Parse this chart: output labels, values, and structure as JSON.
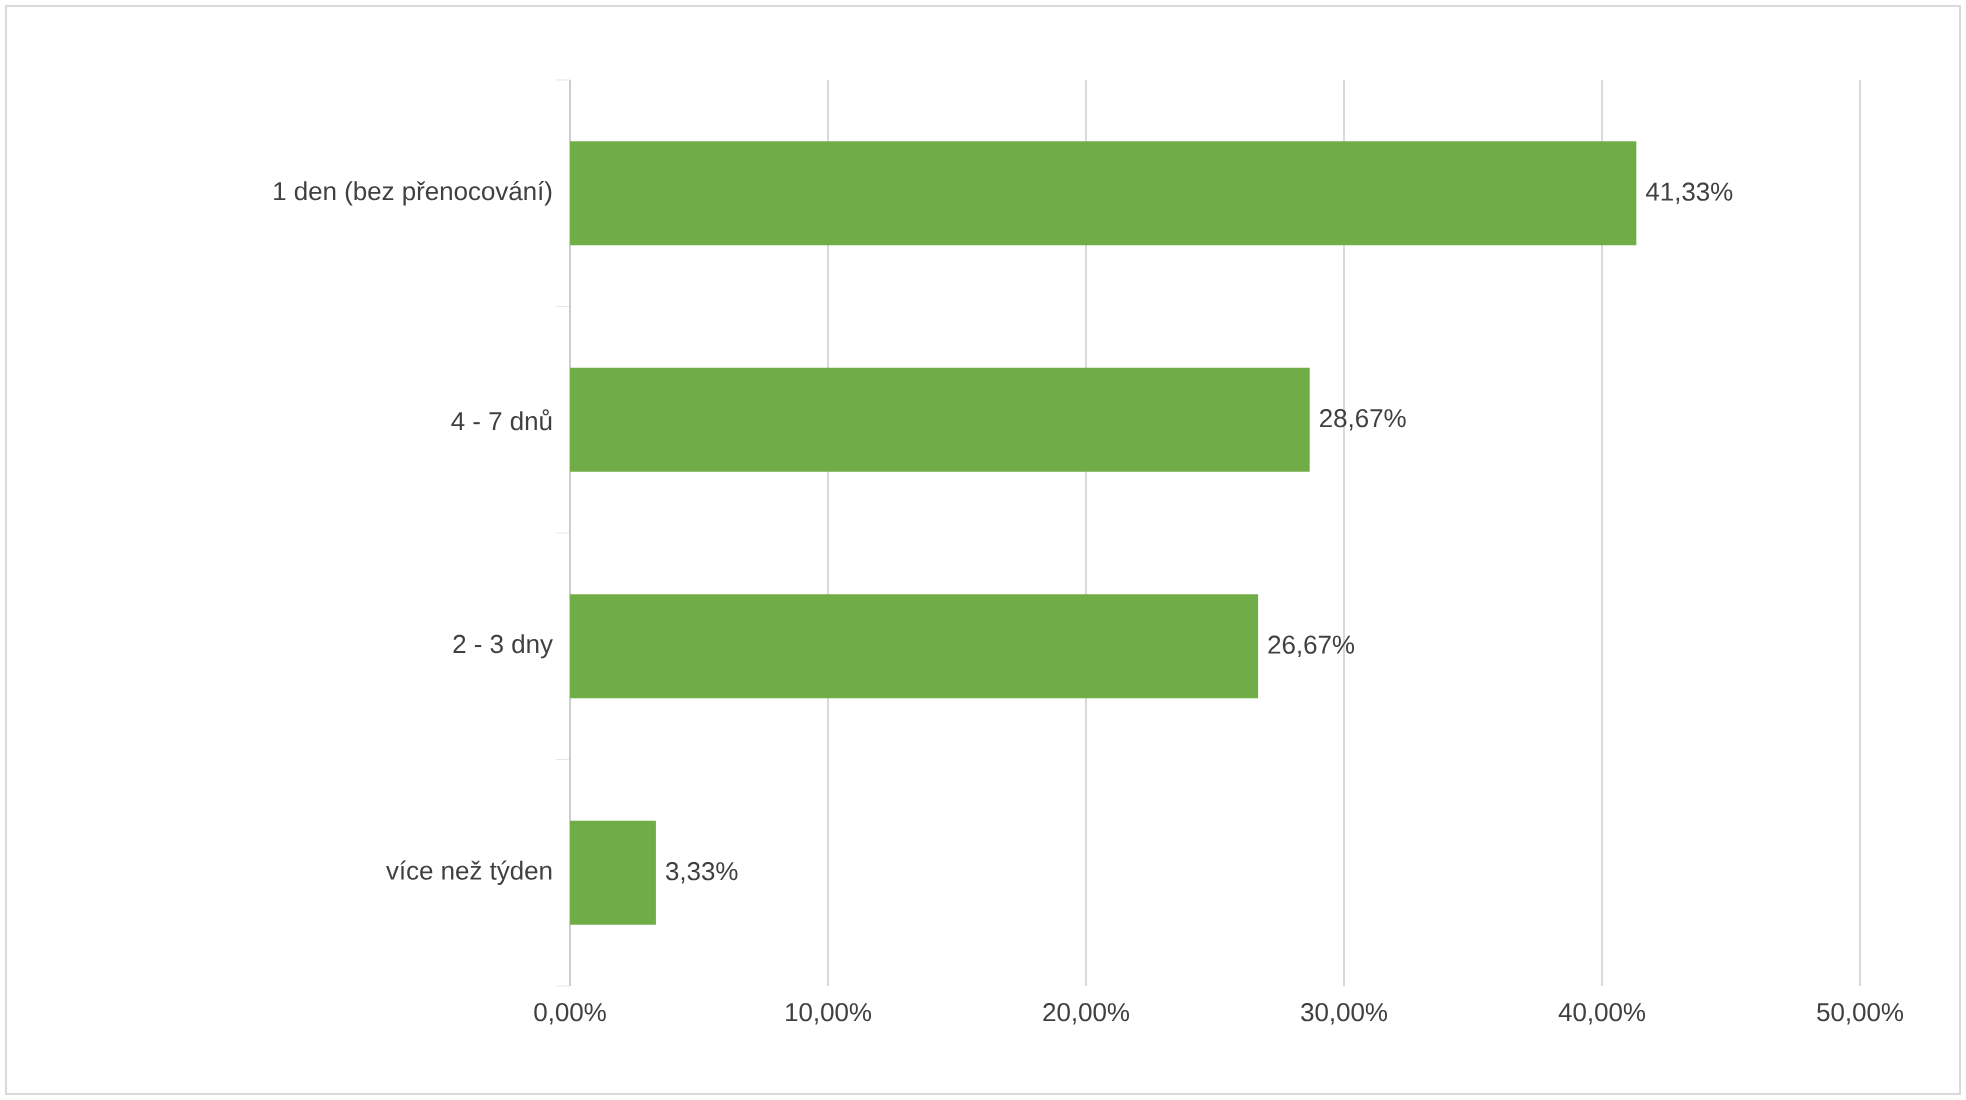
{
  "chart_data": {
    "type": "bar",
    "orientation": "horizontal",
    "categories": [
      "1 den (bez přenocování)",
      "4 - 7 dnů",
      "2 - 3 dny",
      "více než týden"
    ],
    "values": [
      41.33,
      28.67,
      26.67,
      3.33
    ],
    "value_labels": [
      "41,33%",
      "28,67%",
      "26,67%",
      "3,33%"
    ],
    "color": "#70ad47",
    "xlim": [
      0,
      50
    ],
    "xticks": [
      {
        "value": 0,
        "label": "0,00%"
      },
      {
        "value": 10,
        "label": "10,00%"
      },
      {
        "value": 20,
        "label": "20,00%"
      },
      {
        "value": 30,
        "label": "30,00%"
      },
      {
        "value": 40,
        "label": "40,00%"
      },
      {
        "value": 50,
        "label": "50,00%"
      }
    ],
    "grid": "x"
  }
}
